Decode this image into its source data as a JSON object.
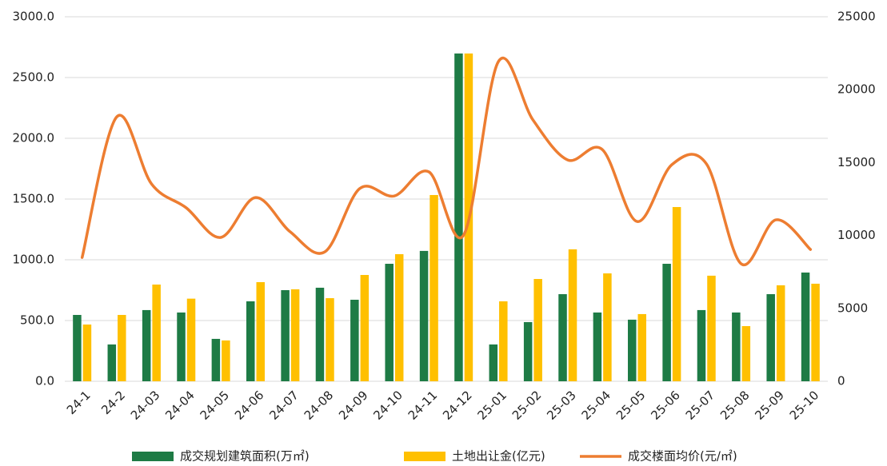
{
  "chart_data": {
    "type": "bar_line",
    "categories": [
      "24-1",
      "24-2",
      "24-03",
      "24-04",
      "24-05",
      "24-06",
      "24-07",
      "24-08",
      "24-09",
      "24-10",
      "24-11",
      "24-12",
      "25-01",
      "25-02",
      "25-03",
      "25-04",
      "25-05",
      "25-06",
      "25-07",
      "25-08",
      "25-09",
      "25-10"
    ],
    "series": [
      {
        "name": "成交规划建筑面积(万㎡)",
        "color": "#1e7b45",
        "type": "bar",
        "values": [
          546,
          303,
          586,
          566,
          349,
          658,
          750,
          770,
          671,
          967,
          1073,
          2698,
          303,
          487,
          717,
          566,
          507,
          967,
          586,
          566,
          717,
          895
        ]
      },
      {
        "name": "土地出让金(亿元)",
        "color": "#ffc000",
        "type": "bar",
        "values": [
          467,
          546,
          796,
          680,
          336,
          816,
          757,
          684,
          875,
          1046,
          1533,
          2698,
          658,
          842,
          1086,
          888,
          553,
          1434,
          869,
          454,
          790,
          803
        ]
      },
      {
        "name": "成交楼面均价(元/㎡)",
        "color": "#ed7d31",
        "type": "line",
        "axis": "y2",
        "values": [
          8490,
          18140,
          13540,
          11900,
          9870,
          12600,
          10250,
          8880,
          13210,
          12710,
          14360,
          10030,
          21920,
          17920,
          15180,
          15890,
          10960,
          14850,
          14910,
          8060,
          11070,
          9040
        ]
      }
    ],
    "ylim": [
      0,
      3000
    ],
    "yticks": [
      {
        "value": 0,
        "label": "0.0"
      },
      {
        "value": 500,
        "label": "500.0"
      },
      {
        "value": 1000,
        "label": "1000.0"
      },
      {
        "value": 1500,
        "label": "1500.0"
      },
      {
        "value": 2000,
        "label": "2000.0"
      },
      {
        "value": 2500,
        "label": "2500.0"
      },
      {
        "value": 3000,
        "label": "3000.0"
      }
    ],
    "y2lim": [
      0,
      25000
    ],
    "y2ticks": [
      0,
      5000,
      10000,
      15000,
      20000,
      25000
    ],
    "grid": true,
    "legend": "bottom"
  }
}
